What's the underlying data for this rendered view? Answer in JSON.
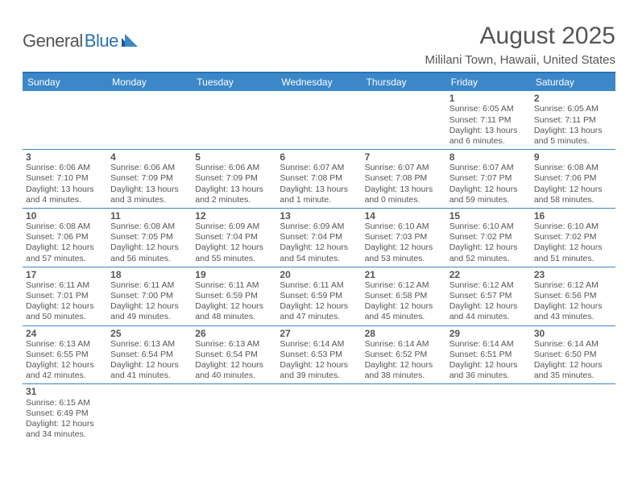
{
  "logo": {
    "text1": "General",
    "text2": "Blue",
    "accent": "#2a72b5"
  },
  "title": "August 2025",
  "location": "Mililani Town, Hawaii, United States",
  "header_bg": "#3b87c8",
  "border_color": "#2a72b5",
  "text_color": "#555555",
  "font_family": "Arial, Helvetica, sans-serif",
  "day_fontsize": 12,
  "detail_fontsize": 10.5,
  "days": [
    "Sunday",
    "Monday",
    "Tuesday",
    "Wednesday",
    "Thursday",
    "Friday",
    "Saturday"
  ],
  "weeks": [
    [
      null,
      null,
      null,
      null,
      null,
      {
        "n": "1",
        "rise": "Sunrise: 6:05 AM",
        "set": "Sunset: 7:11 PM",
        "dl1": "Daylight: 13 hours",
        "dl2": "and 6 minutes."
      },
      {
        "n": "2",
        "rise": "Sunrise: 6:05 AM",
        "set": "Sunset: 7:11 PM",
        "dl1": "Daylight: 13 hours",
        "dl2": "and 5 minutes."
      }
    ],
    [
      {
        "n": "3",
        "rise": "Sunrise: 6:06 AM",
        "set": "Sunset: 7:10 PM",
        "dl1": "Daylight: 13 hours",
        "dl2": "and 4 minutes."
      },
      {
        "n": "4",
        "rise": "Sunrise: 6:06 AM",
        "set": "Sunset: 7:09 PM",
        "dl1": "Daylight: 13 hours",
        "dl2": "and 3 minutes."
      },
      {
        "n": "5",
        "rise": "Sunrise: 6:06 AM",
        "set": "Sunset: 7:09 PM",
        "dl1": "Daylight: 13 hours",
        "dl2": "and 2 minutes."
      },
      {
        "n": "6",
        "rise": "Sunrise: 6:07 AM",
        "set": "Sunset: 7:08 PM",
        "dl1": "Daylight: 13 hours",
        "dl2": "and 1 minute."
      },
      {
        "n": "7",
        "rise": "Sunrise: 6:07 AM",
        "set": "Sunset: 7:08 PM",
        "dl1": "Daylight: 13 hours",
        "dl2": "and 0 minutes."
      },
      {
        "n": "8",
        "rise": "Sunrise: 6:07 AM",
        "set": "Sunset: 7:07 PM",
        "dl1": "Daylight: 12 hours",
        "dl2": "and 59 minutes."
      },
      {
        "n": "9",
        "rise": "Sunrise: 6:08 AM",
        "set": "Sunset: 7:06 PM",
        "dl1": "Daylight: 12 hours",
        "dl2": "and 58 minutes."
      }
    ],
    [
      {
        "n": "10",
        "rise": "Sunrise: 6:08 AM",
        "set": "Sunset: 7:06 PM",
        "dl1": "Daylight: 12 hours",
        "dl2": "and 57 minutes."
      },
      {
        "n": "11",
        "rise": "Sunrise: 6:08 AM",
        "set": "Sunset: 7:05 PM",
        "dl1": "Daylight: 12 hours",
        "dl2": "and 56 minutes."
      },
      {
        "n": "12",
        "rise": "Sunrise: 6:09 AM",
        "set": "Sunset: 7:04 PM",
        "dl1": "Daylight: 12 hours",
        "dl2": "and 55 minutes."
      },
      {
        "n": "13",
        "rise": "Sunrise: 6:09 AM",
        "set": "Sunset: 7:04 PM",
        "dl1": "Daylight: 12 hours",
        "dl2": "and 54 minutes."
      },
      {
        "n": "14",
        "rise": "Sunrise: 6:10 AM",
        "set": "Sunset: 7:03 PM",
        "dl1": "Daylight: 12 hours",
        "dl2": "and 53 minutes."
      },
      {
        "n": "15",
        "rise": "Sunrise: 6:10 AM",
        "set": "Sunset: 7:02 PM",
        "dl1": "Daylight: 12 hours",
        "dl2": "and 52 minutes."
      },
      {
        "n": "16",
        "rise": "Sunrise: 6:10 AM",
        "set": "Sunset: 7:02 PM",
        "dl1": "Daylight: 12 hours",
        "dl2": "and 51 minutes."
      }
    ],
    [
      {
        "n": "17",
        "rise": "Sunrise: 6:11 AM",
        "set": "Sunset: 7:01 PM",
        "dl1": "Daylight: 12 hours",
        "dl2": "and 50 minutes."
      },
      {
        "n": "18",
        "rise": "Sunrise: 6:11 AM",
        "set": "Sunset: 7:00 PM",
        "dl1": "Daylight: 12 hours",
        "dl2": "and 49 minutes."
      },
      {
        "n": "19",
        "rise": "Sunrise: 6:11 AM",
        "set": "Sunset: 6:59 PM",
        "dl1": "Daylight: 12 hours",
        "dl2": "and 48 minutes."
      },
      {
        "n": "20",
        "rise": "Sunrise: 6:11 AM",
        "set": "Sunset: 6:59 PM",
        "dl1": "Daylight: 12 hours",
        "dl2": "and 47 minutes."
      },
      {
        "n": "21",
        "rise": "Sunrise: 6:12 AM",
        "set": "Sunset: 6:58 PM",
        "dl1": "Daylight: 12 hours",
        "dl2": "and 45 minutes."
      },
      {
        "n": "22",
        "rise": "Sunrise: 6:12 AM",
        "set": "Sunset: 6:57 PM",
        "dl1": "Daylight: 12 hours",
        "dl2": "and 44 minutes."
      },
      {
        "n": "23",
        "rise": "Sunrise: 6:12 AM",
        "set": "Sunset: 6:56 PM",
        "dl1": "Daylight: 12 hours",
        "dl2": "and 43 minutes."
      }
    ],
    [
      {
        "n": "24",
        "rise": "Sunrise: 6:13 AM",
        "set": "Sunset: 6:55 PM",
        "dl1": "Daylight: 12 hours",
        "dl2": "and 42 minutes."
      },
      {
        "n": "25",
        "rise": "Sunrise: 6:13 AM",
        "set": "Sunset: 6:54 PM",
        "dl1": "Daylight: 12 hours",
        "dl2": "and 41 minutes."
      },
      {
        "n": "26",
        "rise": "Sunrise: 6:13 AM",
        "set": "Sunset: 6:54 PM",
        "dl1": "Daylight: 12 hours",
        "dl2": "and 40 minutes."
      },
      {
        "n": "27",
        "rise": "Sunrise: 6:14 AM",
        "set": "Sunset: 6:53 PM",
        "dl1": "Daylight: 12 hours",
        "dl2": "and 39 minutes."
      },
      {
        "n": "28",
        "rise": "Sunrise: 6:14 AM",
        "set": "Sunset: 6:52 PM",
        "dl1": "Daylight: 12 hours",
        "dl2": "and 38 minutes."
      },
      {
        "n": "29",
        "rise": "Sunrise: 6:14 AM",
        "set": "Sunset: 6:51 PM",
        "dl1": "Daylight: 12 hours",
        "dl2": "and 36 minutes."
      },
      {
        "n": "30",
        "rise": "Sunrise: 6:14 AM",
        "set": "Sunset: 6:50 PM",
        "dl1": "Daylight: 12 hours",
        "dl2": "and 35 minutes."
      }
    ],
    [
      {
        "n": "31",
        "rise": "Sunrise: 6:15 AM",
        "set": "Sunset: 6:49 PM",
        "dl1": "Daylight: 12 hours",
        "dl2": "and 34 minutes."
      },
      null,
      null,
      null,
      null,
      null,
      null
    ]
  ]
}
